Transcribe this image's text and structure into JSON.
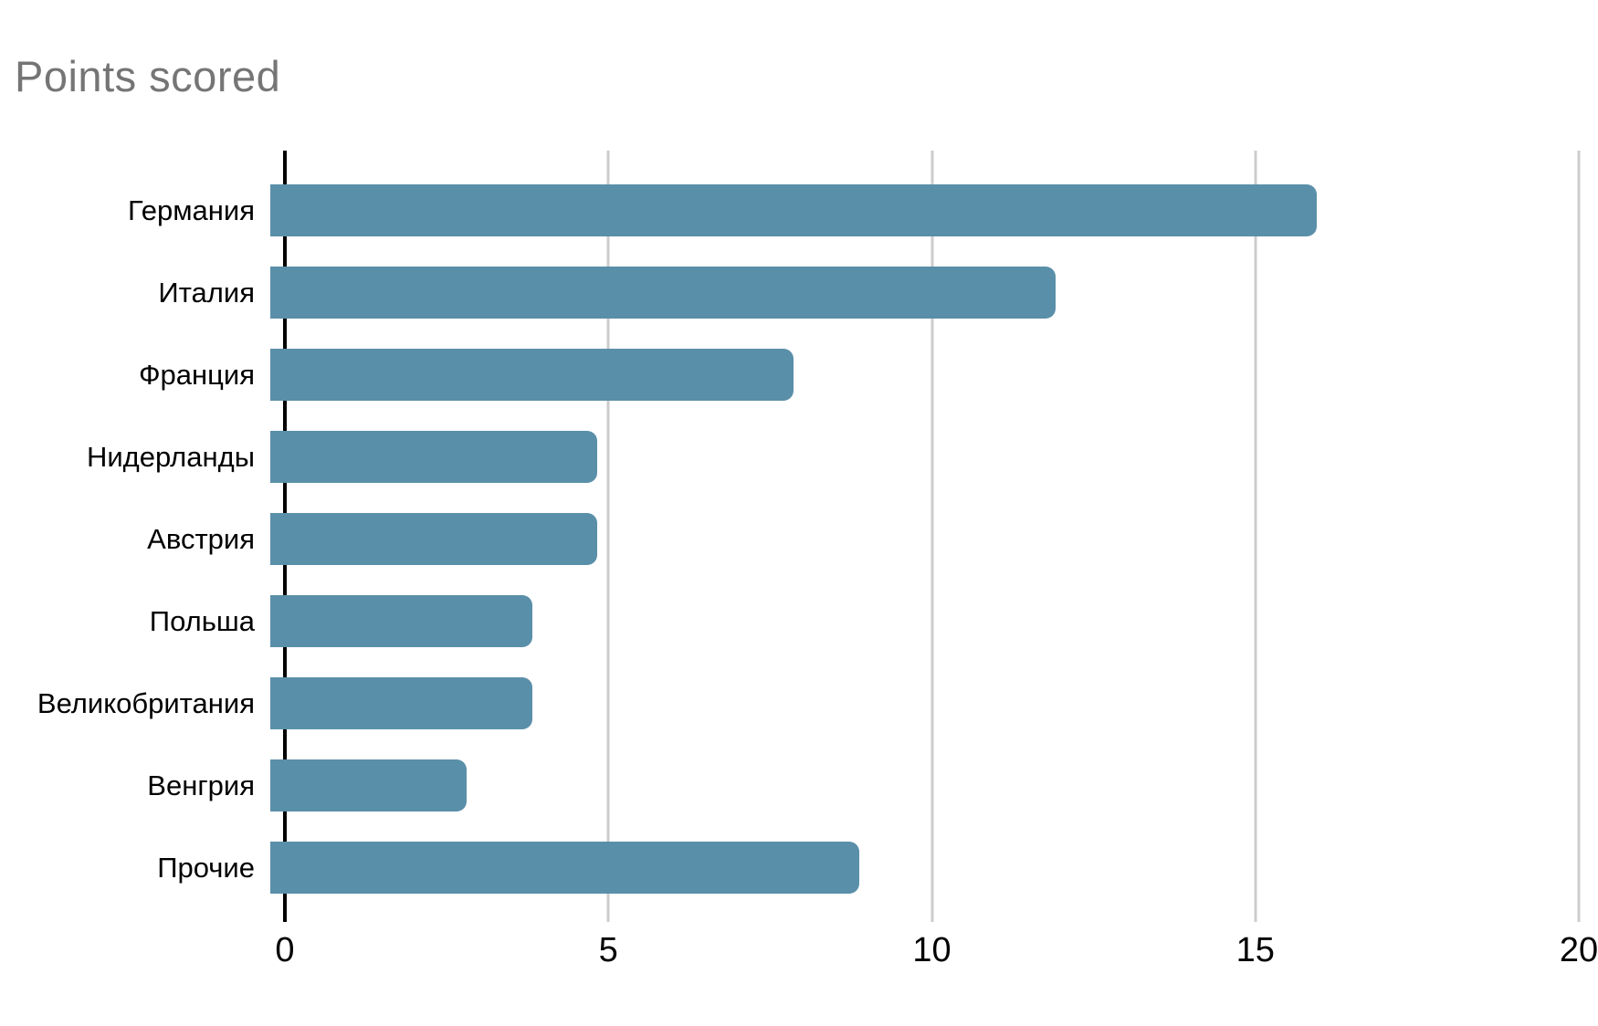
{
  "page": {
    "background": "#ffffff"
  },
  "chart_data": {
    "type": "bar",
    "orientation": "horizontal",
    "title": "Points scored",
    "categories": [
      "Германия",
      "Италия",
      "Франция",
      "Нидерланды",
      "Австрия",
      "Польша",
      "Великобритания",
      "Венгрия",
      "Прочие"
    ],
    "values": [
      16,
      12,
      8,
      5,
      5,
      4,
      4,
      3,
      9
    ],
    "xlabel": "",
    "ylabel": "",
    "xlim": [
      0,
      20
    ],
    "x_ticks": [
      0,
      5,
      10,
      15,
      20
    ],
    "grid": "vertical",
    "legend": "none",
    "colors": {
      "bar": "#5a8fa9",
      "gridline": "#cccccc",
      "axis_line": "#000000",
      "title": "#757575",
      "tick_label": "#000000",
      "category_label": "#000000"
    }
  }
}
